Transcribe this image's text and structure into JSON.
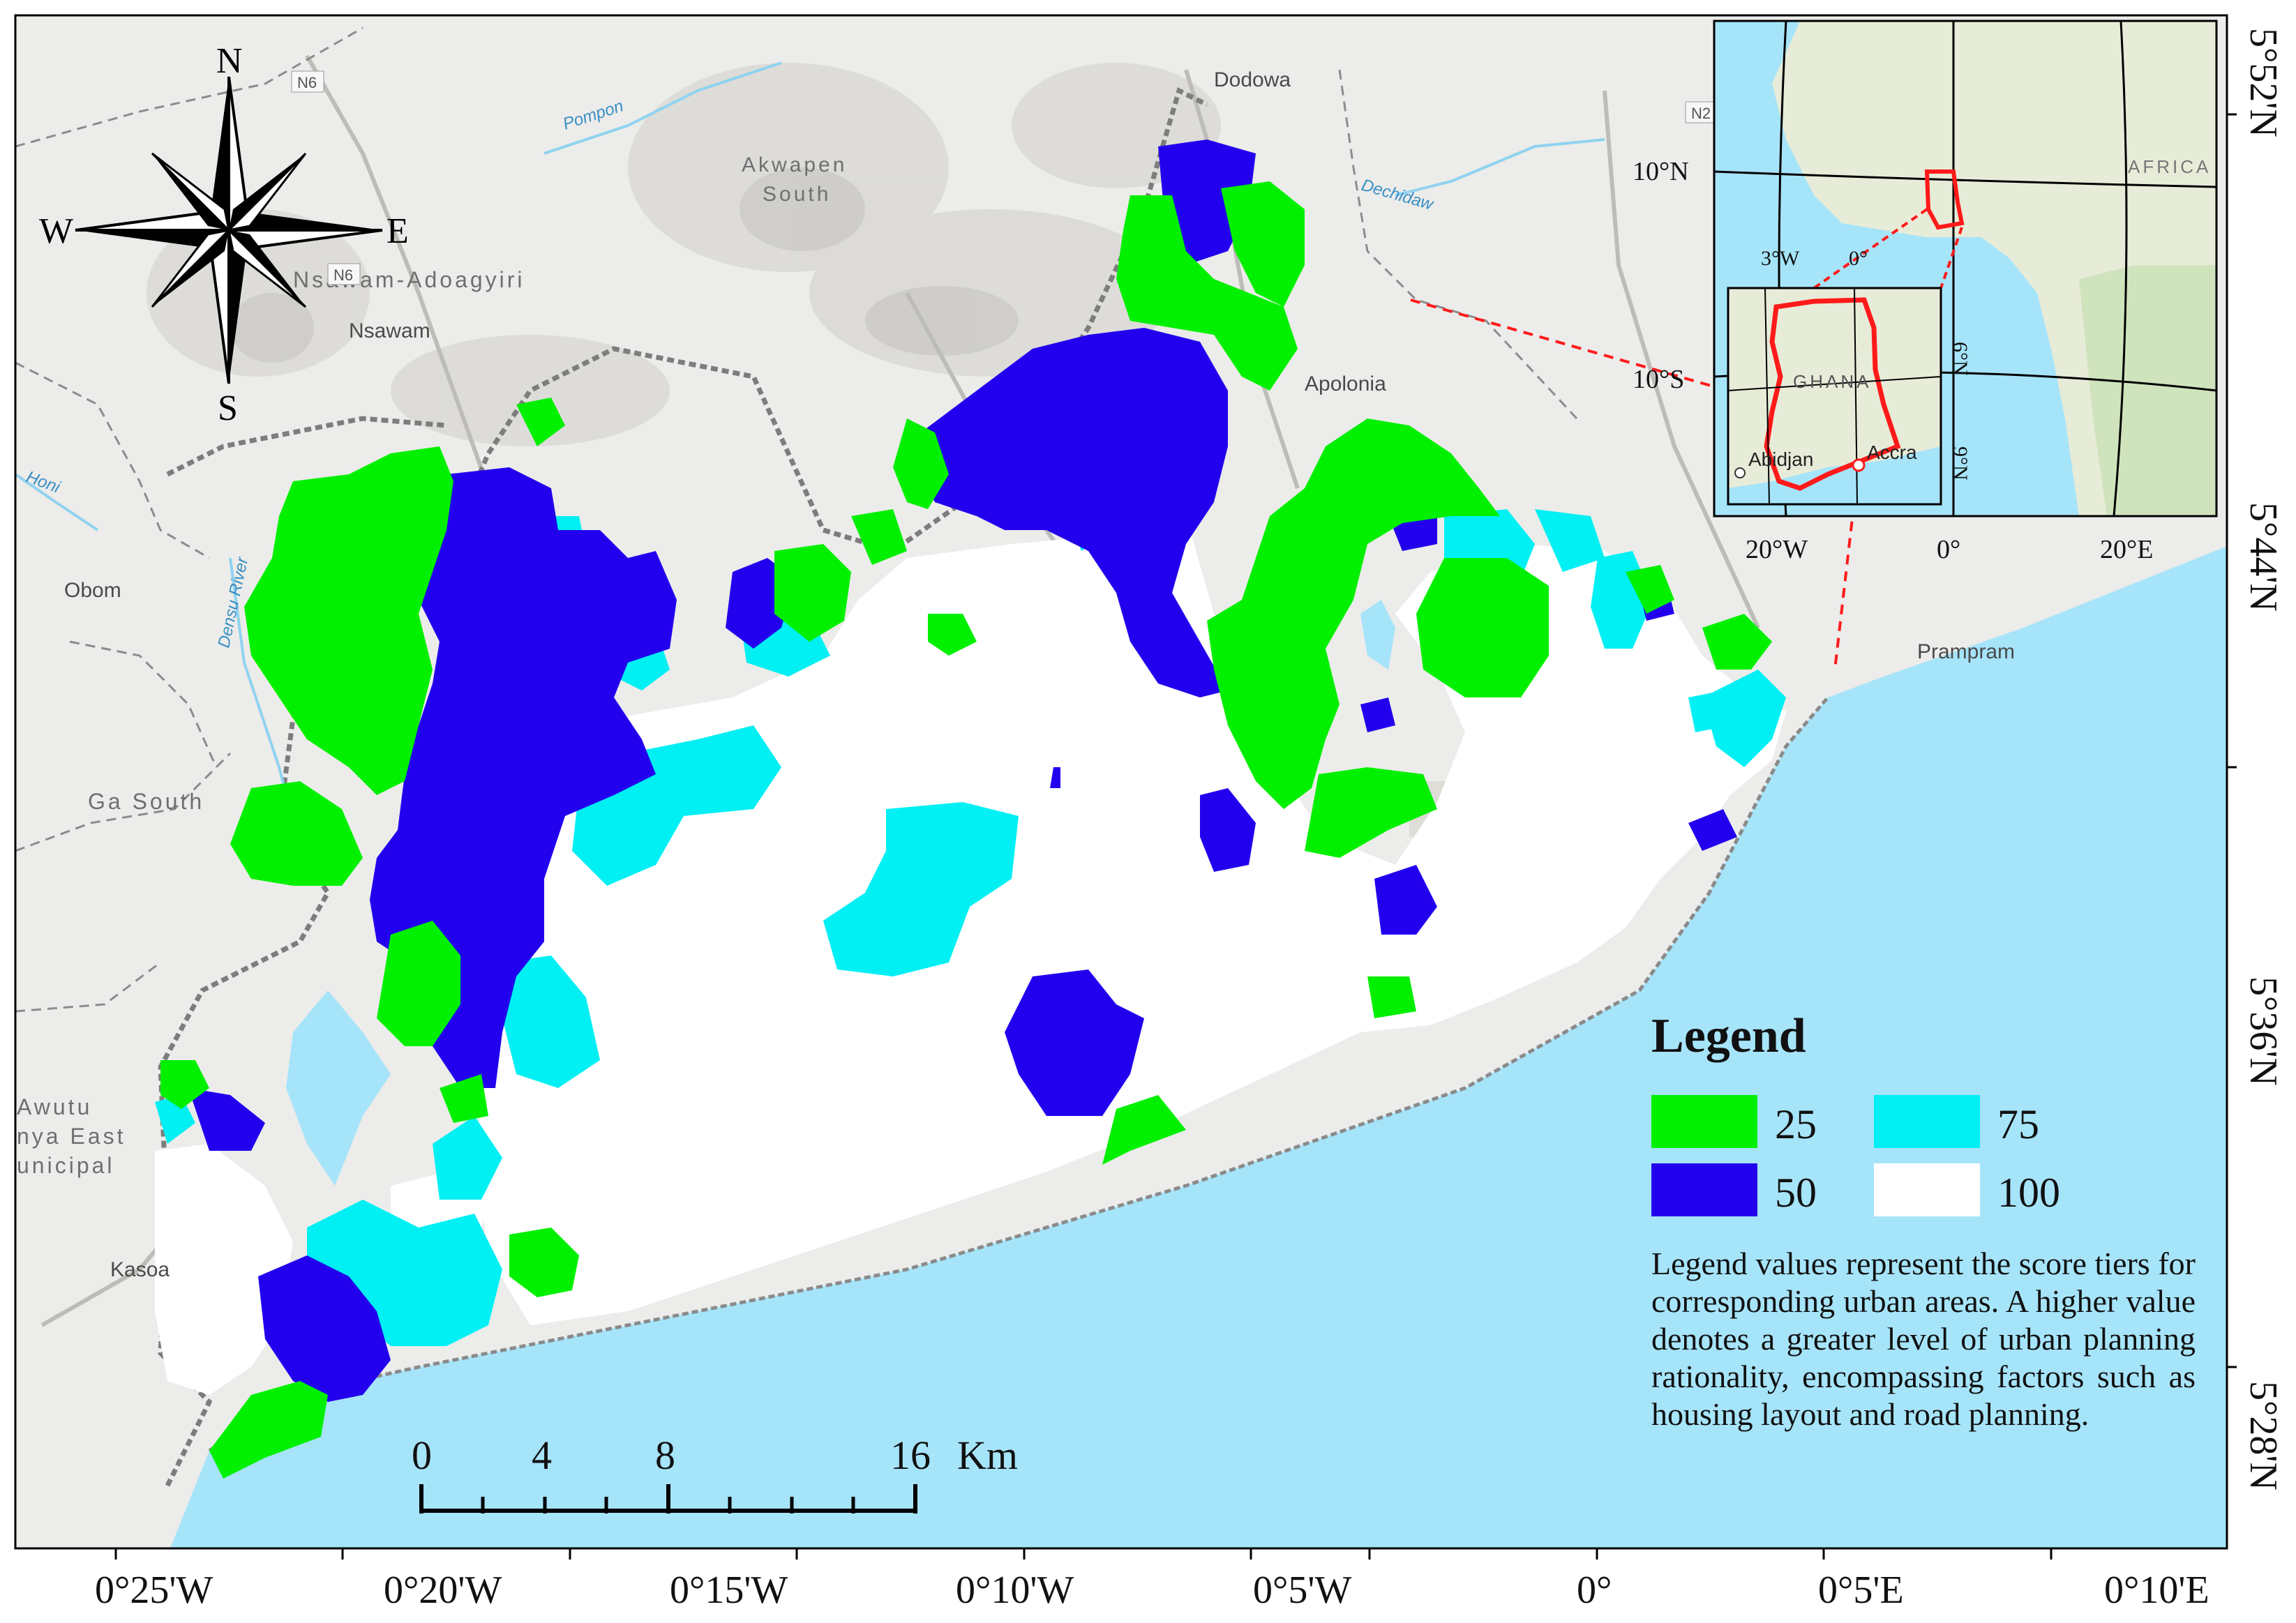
{
  "legend": {
    "title": "Legend",
    "items": [
      {
        "value": "25",
        "color": "#00f000"
      },
      {
        "value": "50",
        "color": "#2200ee"
      },
      {
        "value": "75",
        "color": "#00f0f4"
      },
      {
        "value": "100",
        "color": "#ffffff"
      }
    ],
    "note": "Legend values represent the score tiers for corresponding urban areas. A higher value denotes a greater level of urban planning rationality, encompassing factors such as housing layout and road planning."
  },
  "compass": {
    "n": "N",
    "s": "S",
    "e": "E",
    "w": "W"
  },
  "scale_bar": {
    "ticks": [
      "0",
      "4",
      "8",
      "16"
    ],
    "unit": "Km"
  },
  "lon_labels": [
    "0°25'W",
    "0°20'W",
    "0°15'W",
    "0°10'W",
    "0°5'W",
    "0°",
    "0°5'E",
    "0°10'E"
  ],
  "lat_labels": [
    "5°52'N",
    "5°44'N",
    "5°36'N",
    "5°28'N"
  ],
  "place_labels": {
    "dodowa": "Dodowa",
    "akwapen": "Akwapen",
    "south": "South",
    "nsawam_adoagyiri": "Nsawam-Adoagyiri",
    "nsawam": "Nsawam",
    "apolonia": "Apolonia",
    "obom": "Obom",
    "ga_south": "Ga South",
    "prampram": "Prampram",
    "awutu": "Awutu",
    "nya_east": "nya East",
    "unicipal": "unicipal",
    "kasoa": "Kasoa"
  },
  "road_labels": {
    "n6a": "N6",
    "n6b": "N6",
    "n2": "N2"
  },
  "river_labels": {
    "pompon": "Pompon",
    "dechidaw": "Dechidaw",
    "honi": "Honi",
    "densu": "Densu River"
  },
  "inset": {
    "lat_labels": [
      "10°N",
      "10°S"
    ],
    "lon_labels": [
      "20°W",
      "0°",
      "20°E"
    ],
    "africa": "AFRICA",
    "sub": {
      "lon_labels": [
        "3°W",
        "0°"
      ],
      "lat_labels": [
        "9°N",
        "6°N"
      ],
      "ghana": "GHANA",
      "abidjan": "Abidjan",
      "accra": "Accra"
    }
  },
  "colors": {
    "sea": "#a6e4fa",
    "land": "#ececea",
    "border": "#7a7a7a",
    "inset_red": "#ff1a1a"
  }
}
